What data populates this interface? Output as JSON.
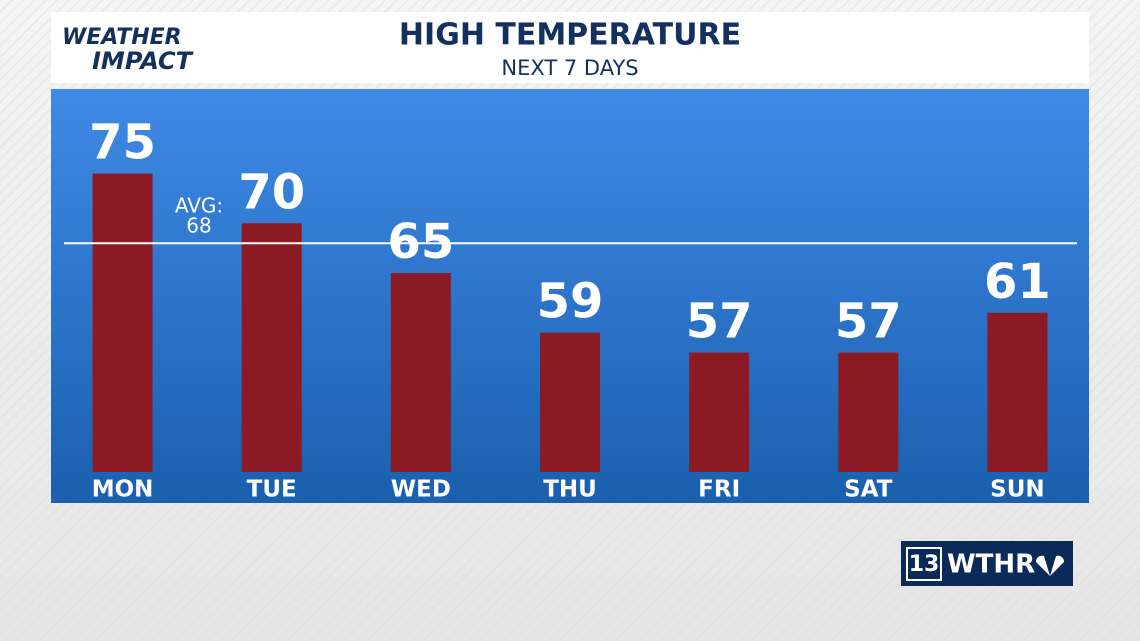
{
  "chart_data": {
    "type": "bar",
    "title": "HIGH TEMPERATURE",
    "subtitle": "NEXT 7 DAYS",
    "categories": [
      "MON",
      "TUE",
      "WED",
      "THU",
      "FRI",
      "SAT",
      "SUN"
    ],
    "values": [
      75,
      70,
      65,
      59,
      57,
      57,
      61
    ],
    "color": "#8b1a22",
    "ylim": [
      45,
      83
    ],
    "average": {
      "label": "AVG:",
      "value": 68
    }
  },
  "branding": {
    "show_top": "WEATHER",
    "show_bottom": "IMPACT",
    "station_number": "13",
    "station": "WTHR"
  }
}
